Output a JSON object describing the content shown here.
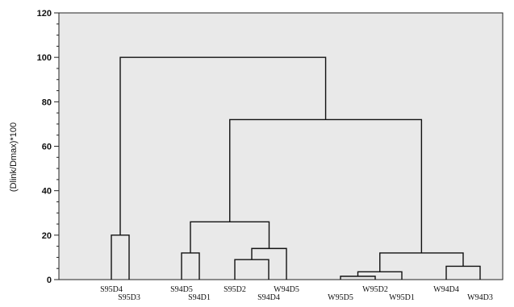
{
  "chart_data": {
    "type": "dendrogram",
    "ylabel": "(Dlink/Dmax)*100",
    "ylim": [
      0,
      120
    ],
    "yticks": [
      0,
      20,
      40,
      60,
      80,
      100,
      120
    ],
    "leaves": [
      "S95D4",
      "S95D3",
      "S94D5",
      "S94D1",
      "S95D2",
      "S94D4",
      "W94D5",
      "W95D5",
      "W95D2",
      "W95D1",
      "W94D4",
      "W94D3"
    ],
    "merges": [
      {
        "left": 0,
        "right": 1,
        "height": 20
      },
      {
        "left": 2,
        "right": 3,
        "height": 12
      },
      {
        "left": 4,
        "right": 5,
        "height": 9
      },
      {
        "left": 6,
        "right": "n2",
        "height": 14
      },
      {
        "left": "n1",
        "right": "n3",
        "height": 26
      },
      {
        "left": 7,
        "right": 8,
        "height": 1.5
      },
      {
        "left": "n5",
        "right": 9,
        "height": 3.5
      },
      {
        "left": 10,
        "right": 11,
        "height": 6
      },
      {
        "left": "n6",
        "right": "n7",
        "height": 12
      },
      {
        "left": "n4",
        "right": "n8",
        "height": 72
      },
      {
        "left": "n0",
        "right": "n9",
        "height": 100
      }
    ]
  }
}
